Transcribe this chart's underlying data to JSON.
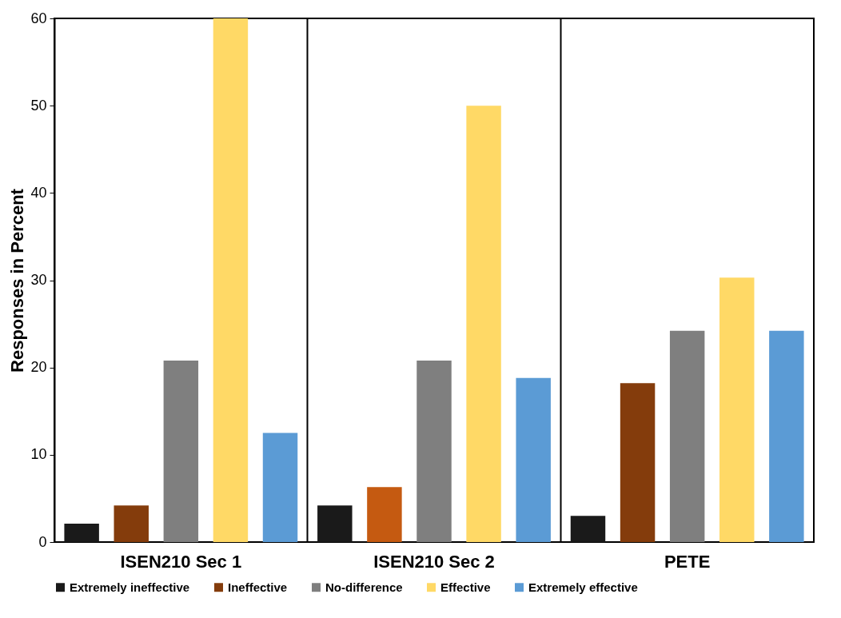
{
  "chart_data": {
    "type": "bar",
    "ylabel": "Responses in Percent",
    "categories": [
      "ISEN210 Sec 1",
      "ISEN210 Sec 2",
      "PETE"
    ],
    "series": [
      {
        "name": "Extremely ineffective",
        "color": "#1a1a1a",
        "values": [
          2.1,
          4.2,
          3.0
        ]
      },
      {
        "name": "Ineffective",
        "color": "#843c0c",
        "colors": [
          "#843c0c",
          "#c55a11",
          "#843c0c"
        ],
        "values": [
          4.2,
          6.3,
          18.2
        ]
      },
      {
        "name": "No-difference",
        "color": "#7f7f7f",
        "values": [
          20.8,
          20.8,
          24.2
        ]
      },
      {
        "name": "Effective",
        "color": "#ffd966",
        "values": [
          60,
          50,
          30.3
        ]
      },
      {
        "name": "Extremely effective",
        "color": "#5b9bd5",
        "values": [
          12.5,
          18.8,
          24.2
        ]
      }
    ],
    "ylim": [
      0,
      60
    ],
    "yticks": [
      0,
      10,
      20,
      30,
      40,
      50,
      60
    ],
    "legend": "bottom"
  }
}
